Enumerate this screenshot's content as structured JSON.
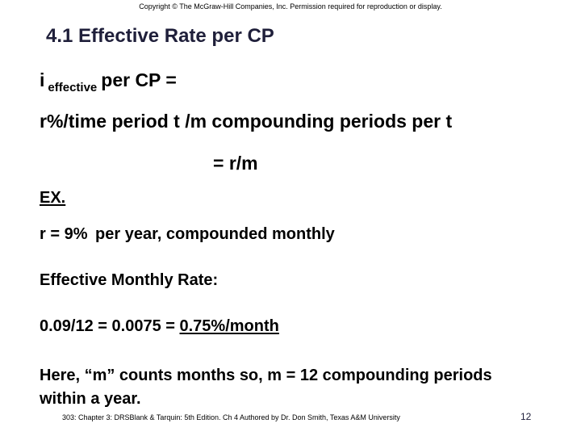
{
  "copyright": "Copyright © The McGraw-Hill Companies, Inc. Permission required for reproduction or display.",
  "title": "4.1 Effective Rate per CP",
  "definition": {
    "symbol": "i",
    "subscript": "effective",
    "rest": "per CP ="
  },
  "formula": "r%/time period t /m compounding periods per t",
  "result": "= r/m",
  "example_label": "EX.",
  "given": {
    "rate": "r = 9%",
    "rest": "per year, compounded monthly"
  },
  "effective_label": "Effective Monthly Rate:",
  "calculation": {
    "prefix": "0.09/12 = 0.0075 =",
    "answer": "0.75%/month"
  },
  "note": "Here, “m” counts months so, m = 12 compounding periods within a year.",
  "footer": "303: Chapter 3: DRSBlank & Tarquin: 5th Edition. Ch 4 Authored by Dr. Don Smith, Texas A&M University",
  "page_number": "12"
}
